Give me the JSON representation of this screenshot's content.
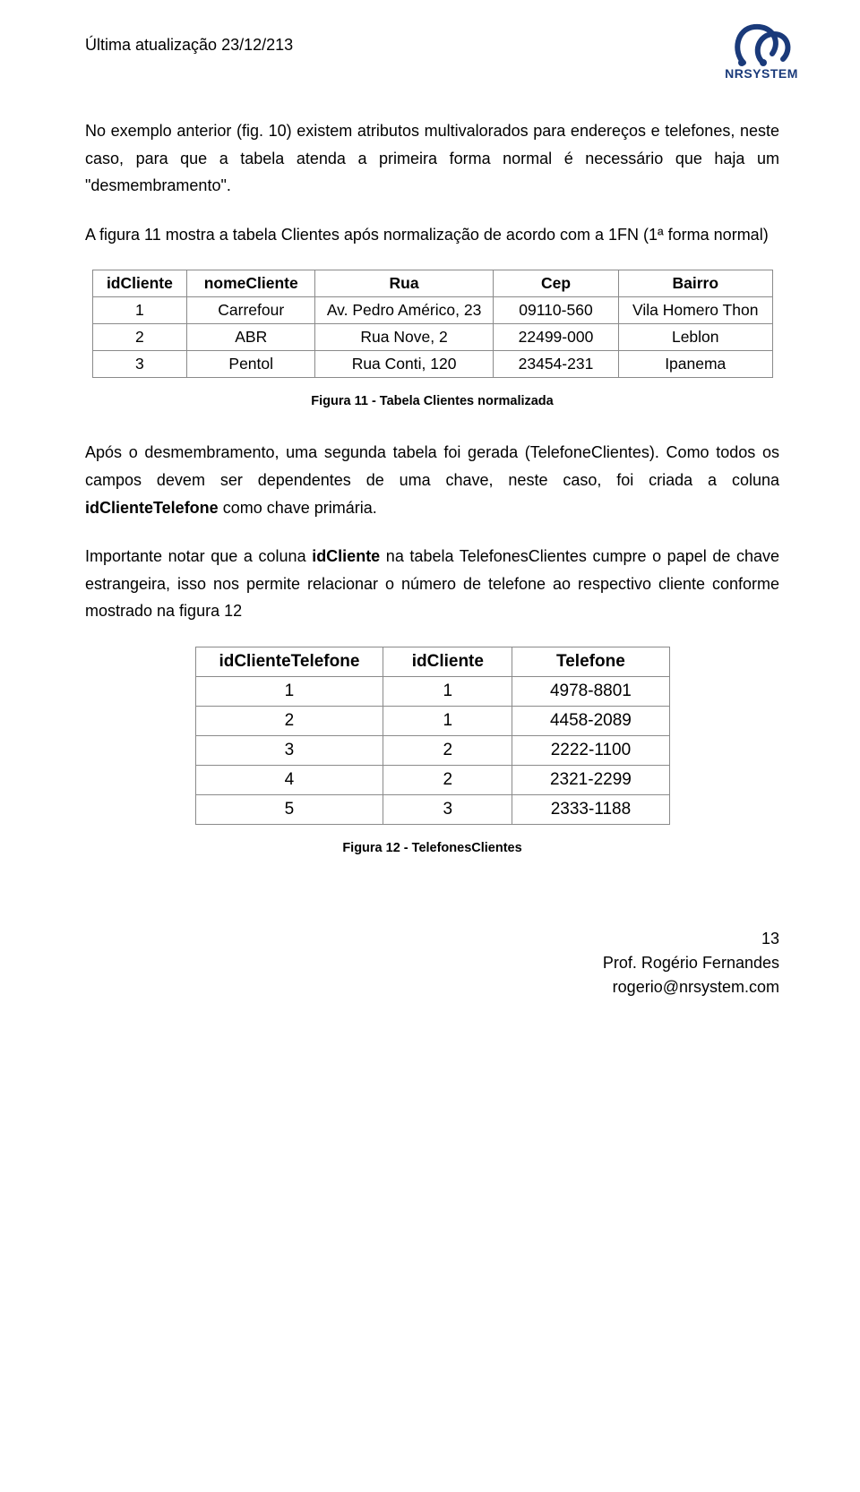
{
  "header": {
    "update_line": "Última atualização 23/12/213",
    "logo_text": "NRSYSTEM"
  },
  "para1": "No exemplo anterior (fig. 10) existem atributos multivalorados para endereços e telefones, neste caso, para que a tabela atenda a primeira forma normal é necessário que haja um \"desmembramento\".",
  "para2": "A figura 11 mostra a tabela Clientes após normalização de acordo com a 1FN (1ª forma normal)",
  "table1": {
    "columns": [
      "idCliente",
      "nomeCliente",
      "Rua",
      "Cep",
      "Bairro"
    ],
    "rows": [
      [
        "1",
        "Carrefour",
        "Av. Pedro Américo, 23",
        "09110-560",
        "Vila Homero Thon"
      ],
      [
        "2",
        "ABR",
        "Rua Nove, 2",
        "22499-000",
        "Leblon"
      ],
      [
        "3",
        "Pentol",
        "Rua Conti, 120",
        "23454-231",
        "Ipanema"
      ]
    ],
    "col_widths": [
      "90px",
      "130px",
      "230px",
      "150px",
      "190px"
    ]
  },
  "caption1": "Figura 11 - Tabela Clientes normalizada",
  "para3_a": "Após o desmembramento, uma segunda tabela foi gerada (TelefoneClientes). Como todos os campos devem ser dependentes de uma chave, neste caso, foi criada a coluna ",
  "para3_b": "idClienteTelefone",
  "para3_c": " como chave primária.",
  "para4_a": "Importante notar que a coluna ",
  "para4_b": "idCliente",
  "para4_c": " na tabela TelefonesClientes cumpre o papel de chave estrangeira, isso nos permite relacionar o número de telefone ao respectivo cliente conforme mostrado na figura 12",
  "table2": {
    "columns": [
      "idClienteTelefone",
      "idCliente",
      "Telefone"
    ],
    "rows": [
      [
        "1",
        "1",
        "4978-8801"
      ],
      [
        "2",
        "1",
        "4458-2089"
      ],
      [
        "3",
        "2",
        "2222-1100"
      ],
      [
        "4",
        "2",
        "2321-2299"
      ],
      [
        "5",
        "3",
        "2333-1188"
      ]
    ],
    "col_widths": [
      "200px",
      "140px",
      "190px"
    ]
  },
  "caption2": "Figura 12 - TelefonesClientes",
  "footer": {
    "pagenum": "13",
    "author": "Prof. Rogério Fernandes",
    "email": "rogerio@nrsystem.com"
  },
  "colors": {
    "logo_stroke": "#1a3a7a",
    "border": "#8a8a8a",
    "text": "#000000",
    "background": "#ffffff"
  }
}
